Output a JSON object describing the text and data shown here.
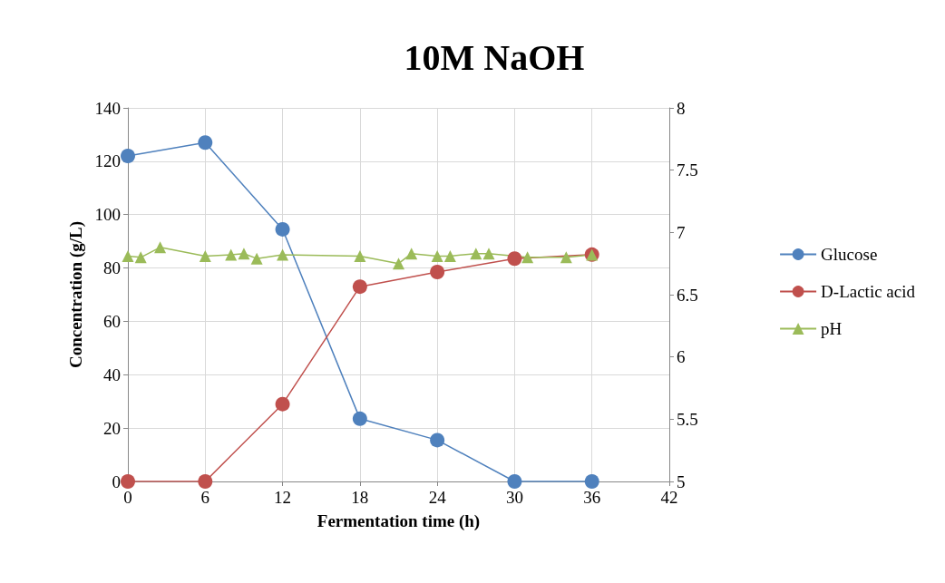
{
  "chart_data": {
    "type": "line",
    "title": "10M NaOH",
    "xlabel": "Fermentation time (h)",
    "ylabel": "Concentration (g/L)",
    "xlim": [
      0,
      42
    ],
    "xticks": [
      0,
      6,
      12,
      18,
      24,
      30,
      36,
      42
    ],
    "ylim": [
      0,
      140
    ],
    "yticks": [
      0,
      20,
      40,
      60,
      80,
      100,
      120,
      140
    ],
    "y2lim": [
      5,
      8
    ],
    "y2ticks": [
      5,
      5.5,
      6,
      6.5,
      7,
      7.5,
      8
    ],
    "grid": true,
    "legend": "right",
    "series": [
      {
        "name": "Glucose",
        "color": "#4f81bd",
        "marker": "circle",
        "x": [
          0,
          6,
          12,
          18,
          24,
          30,
          36
        ],
        "values": [
          122,
          127,
          94.5,
          23.5,
          15.5,
          0,
          0
        ]
      },
      {
        "name": "D-Lactic acid",
        "color": "#c0504d",
        "marker": "circle",
        "x": [
          0,
          6,
          12,
          18,
          24,
          30,
          36
        ],
        "values": [
          0,
          0,
          29,
          73,
          78.5,
          83.5,
          85
        ]
      },
      {
        "name": "pH",
        "color": "#9bbb59",
        "marker": "triangle",
        "axis": "y2",
        "x": [
          0,
          1,
          2.5,
          6,
          8,
          9,
          10,
          12,
          18,
          21,
          22,
          24,
          25,
          27,
          28,
          31,
          34,
          36
        ],
        "values": [
          6.81,
          6.8,
          6.88,
          6.81,
          6.82,
          6.83,
          6.79,
          6.82,
          6.81,
          6.75,
          6.83,
          6.81,
          6.81,
          6.83,
          6.83,
          6.8,
          6.8,
          6.82
        ]
      }
    ]
  }
}
